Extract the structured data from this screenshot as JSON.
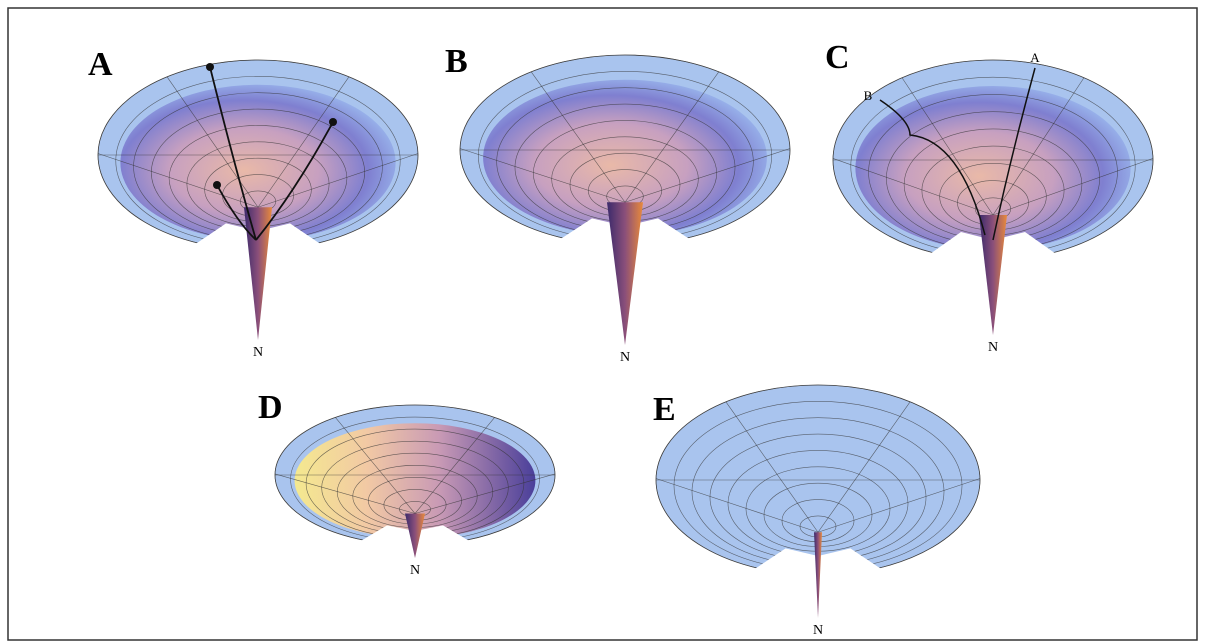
{
  "panels": [
    {
      "label": "A",
      "bottom_label": "N"
    },
    {
      "label": "B",
      "bottom_label": "N"
    },
    {
      "label": "C",
      "bottom_label": "N",
      "path_labels": [
        "A",
        "B"
      ]
    },
    {
      "label": "D",
      "bottom_label": "N"
    },
    {
      "label": "E",
      "bottom_label": "N"
    }
  ]
}
